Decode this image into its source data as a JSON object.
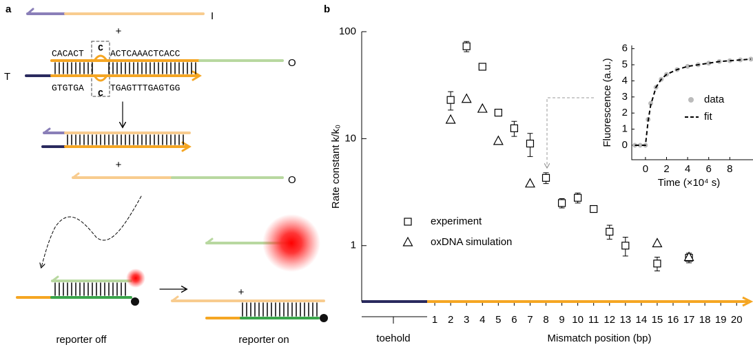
{
  "diagram": {
    "panel_label": "a",
    "input_label": "I",
    "plus_1": "+",
    "top_seq_left": "CACACT",
    "top_mismatch": "C",
    "top_seq_right": "ACTCAAACTCACC",
    "toehold_label": "T",
    "output_label_1": "O",
    "bottom_seq_left": "GTGTGA",
    "bottom_mismatch": "C",
    "bottom_seq_right": "TGAGTTTGAGTGG",
    "plus_2": "+",
    "output_label_2": "O",
    "plus_3": "+",
    "reporter_off": "reporter off",
    "reporter_on": "reporter on"
  },
  "chart_data": [
    {
      "type": "scatter",
      "panel_label": "b",
      "xlabel": "Mismatch position (bp)",
      "ylabel": "Rate constant k/k₀",
      "log_y": true,
      "xlim": [
        -3.6,
        20.9
      ],
      "xticks": [
        1,
        2,
        3,
        4,
        5,
        6,
        7,
        8,
        9,
        10,
        11,
        12,
        13,
        14,
        15,
        16,
        17,
        18,
        19,
        20
      ],
      "ylim": [
        0.3,
        100
      ],
      "yticks": [
        1,
        10,
        100
      ],
      "annotation": "toehold",
      "series": [
        {
          "name": "experiment",
          "marker": "square",
          "color": "#000000",
          "x": [
            2,
            3,
            4,
            5,
            6,
            7,
            8,
            9,
            10,
            11,
            12,
            13,
            15,
            17
          ],
          "values": [
            23,
            73,
            47,
            17.5,
            12.5,
            9,
            4.3,
            2.5,
            2.8,
            2.2,
            1.35,
            1.0,
            0.68,
            0.77
          ],
          "errors": [
            4.5,
            8,
            1,
            0.7,
            2,
            2.2,
            0.5,
            0.25,
            0.3,
            0.05,
            0.2,
            0.2,
            0.1,
            0.08
          ]
        },
        {
          "name": "oxDNA simulation",
          "marker": "triangle",
          "color": "#000000",
          "x": [
            2,
            3,
            4,
            5,
            7,
            15,
            17
          ],
          "values": [
            15,
            23.5,
            19,
            9.5,
            3.8,
            1.05,
            0.78
          ]
        }
      ]
    },
    {
      "type": "line",
      "xlabel": "Time (×10⁴ s)",
      "ylabel": "Fluorescence (a.u.)",
      "xlim": [
        -1.3,
        10.2
      ],
      "xticks": [
        0,
        2,
        4,
        6,
        8
      ],
      "ylim": [
        -0.9,
        6.2
      ],
      "yticks": [
        0,
        1,
        2,
        3,
        4,
        5,
        6
      ],
      "x": [
        -1,
        -0.5,
        0,
        0.25,
        0.5,
        1,
        1.5,
        2,
        3,
        4,
        5,
        6,
        7,
        8,
        9,
        10
      ],
      "series": [
        {
          "name": "data",
          "style": "markers",
          "color": "#bbbbbb",
          "values": [
            0,
            0,
            0,
            1.6,
            2.6,
            3.6,
            4.1,
            4.4,
            4.7,
            4.9,
            5.0,
            5.1,
            5.2,
            5.25,
            5.3,
            5.35
          ]
        },
        {
          "name": "fit",
          "style": "dashed",
          "color": "#000000",
          "values": [
            0,
            0,
            0,
            1.5,
            2.5,
            3.6,
            4.1,
            4.4,
            4.7,
            4.9,
            5.0,
            5.1,
            5.2,
            5.25,
            5.3,
            5.35
          ]
        }
      ]
    }
  ]
}
